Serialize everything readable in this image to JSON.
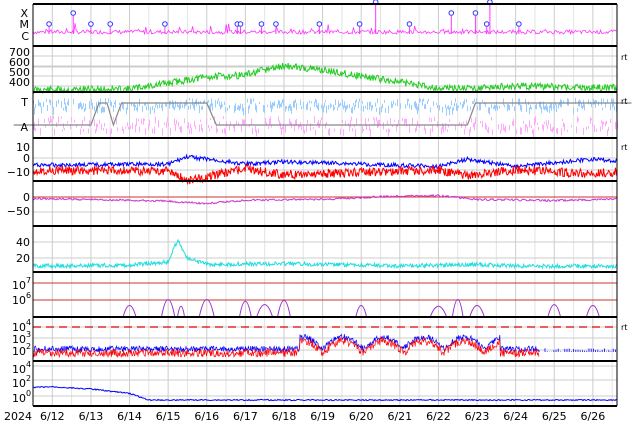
{
  "chart_data": [
    {
      "type": "scatter",
      "panel": "class",
      "y_categories": [
        "X",
        "M",
        "C"
      ],
      "series": [
        {
          "color": "#ff33ff",
          "style": "trace"
        },
        {
          "color": "#3333ff",
          "style": "circle-markers",
          "x": [
            "2024-06-11T22:00",
            "2024-06-12T13:00",
            "2024-06-13T00:00",
            "2024-06-13T12:00",
            "2024-06-14T22:00",
            "2024-06-16T19:00",
            "2024-06-16T21:00",
            "2024-06-17T10:00",
            "2024-06-17T19:00",
            "2024-06-18T22:00",
            "2024-06-19T23:00",
            "2024-06-20T09:00",
            "2024-06-21T06:00",
            "2024-06-22T08:00",
            "2024-06-22T23:00",
            "2024-06-23T06:00",
            "2024-06-23T08:00",
            "2024-06-24T02:00"
          ],
          "values": [
            "C",
            "M",
            "C",
            "C",
            "C",
            "C",
            "C",
            "C",
            "C",
            "C",
            "C",
            "X",
            "C",
            "M",
            "M",
            "C",
            "X",
            "C"
          ]
        }
      ]
    },
    {
      "type": "line",
      "panel": "wind-speed",
      "yticks": [
        400,
        500,
        600,
        700
      ],
      "ylim": [
        300,
        750
      ],
      "series": [
        {
          "color": "#22cc22",
          "x": [
            "2024-06-11T00:00",
            "2024-06-14T00:00",
            "2024-06-15T00:00",
            "2024-06-16T00:00",
            "2024-06-17T00:00",
            "2024-06-17T12:00",
            "2024-06-18T00:00",
            "2024-06-19T00:00",
            "2024-06-20T00:00",
            "2024-06-21T00:00",
            "2024-06-22T00:00",
            "2024-06-23T00:00",
            "2024-06-24T00:00",
            "2024-06-25T00:00",
            "2024-06-27T00:00"
          ],
          "values": [
            360,
            370,
            430,
            490,
            510,
            560,
            600,
            560,
            500,
            440,
            380,
            380,
            400,
            390,
            380
          ]
        }
      ]
    },
    {
      "type": "area",
      "panel": "sector",
      "y_categories": [
        "T",
        "A"
      ],
      "series": [
        {
          "color": "#99ccff",
          "level": "T"
        },
        {
          "color": "#ffaaff",
          "level": "A"
        },
        {
          "color": "#888888",
          "style": "step",
          "x": [
            "2024-06-11T00:00",
            "2024-06-13T00:00",
            "2024-06-13T05:00",
            "2024-06-13T10:00",
            "2024-06-13T14:00",
            "2024-06-13T19:00",
            "2024-06-16T00:00",
            "2024-06-16T06:00",
            "2024-06-22T18:00",
            "2024-06-22T23:00",
            "2024-06-27T00:00"
          ],
          "values": [
            "A",
            "A",
            "T",
            "T",
            "A",
            "T",
            "T",
            "A",
            "A",
            "T",
            "T"
          ]
        }
      ]
    },
    {
      "type": "line",
      "panel": "imf",
      "yticks": [
        -10,
        0,
        10
      ],
      "ylim": [
        -16,
        16
      ],
      "series": [
        {
          "color": "#0000ff",
          "x": [
            "2024-06-11T00:00",
            "2024-06-15T00:00",
            "2024-06-15T12:00",
            "2024-06-17T00:00",
            "2024-06-18T00:00",
            "2024-06-22T00:00",
            "2024-06-22T18:00",
            "2024-06-24T00:00",
            "2024-06-26T00:00",
            "2024-06-27T00:00"
          ],
          "values": [
            4,
            5,
            11,
            5,
            7,
            3,
            9,
            3,
            9,
            6
          ]
        },
        {
          "color": "#ff0000",
          "x": [
            "2024-06-11T00:00",
            "2024-06-15T00:00",
            "2024-06-15T12:00",
            "2024-06-17T00:00",
            "2024-06-18T00:00",
            "2024-06-22T00:00",
            "2024-06-22T18:00",
            "2024-06-24T00:00",
            "2024-06-26T00:00",
            "2024-06-27T00:00"
          ],
          "values": [
            0,
            -1,
            -9,
            1,
            -4,
            0,
            -5,
            0,
            -3,
            -1
          ]
        }
      ]
    },
    {
      "type": "line",
      "panel": "dst",
      "yticks": [
        -50,
        0
      ],
      "ylim": [
        -80,
        20
      ],
      "series": [
        {
          "color": "#cc33cc",
          "x": [
            "2024-06-11T00:00",
            "2024-06-13T00:00",
            "2024-06-15T00:00",
            "2024-06-16T00:00",
            "2024-06-17T00:00",
            "2024-06-19T00:00",
            "2024-06-21T00:00",
            "2024-06-22T00:00",
            "2024-06-23T00:00",
            "2024-06-25T00:00",
            "2024-06-27T00:00"
          ],
          "values": [
            -5,
            -8,
            -14,
            -22,
            -10,
            -8,
            4,
            5,
            -8,
            -12,
            -5
          ]
        }
      ]
    },
    {
      "type": "line",
      "panel": "density",
      "yticks": [
        20,
        40
      ],
      "ylim": [
        0,
        50
      ],
      "series": [
        {
          "color": "#22dddd",
          "x": [
            "2024-06-11T00:00",
            "2024-06-14T00:00",
            "2024-06-15T00:00",
            "2024-06-15T06:00",
            "2024-06-15T12:00",
            "2024-06-16T00:00",
            "2024-06-18T00:00",
            "2024-06-21T00:00",
            "2024-06-23T00:00",
            "2024-06-24T00:00",
            "2024-06-27T00:00"
          ],
          "values": [
            5,
            6,
            10,
            38,
            14,
            7,
            8,
            5,
            7,
            5,
            5
          ]
        }
      ]
    },
    {
      "type": "line",
      "panel": "electron-fluence",
      "yscale": "log",
      "yticks": [
        "10^6",
        "10^7"
      ],
      "series": [
        {
          "color": "#9933cc",
          "x": [
            "2024-06-14T00:00",
            "2024-06-15T00:00",
            "2024-06-15T08:00",
            "2024-06-16T00:00",
            "2024-06-17T00:00",
            "2024-06-17T12:00",
            "2024-06-18T00:00",
            "2024-06-20T00:00",
            "2024-06-22T00:00",
            "2024-06-22T12:00",
            "2024-06-23T00:00",
            "2024-06-25T00:00",
            "2024-06-26T00:00"
          ],
          "values": [
            "10^5.3",
            "10^6",
            "10^5.2",
            "10^6",
            "10^5.8",
            "10^5.4",
            "10^5.9",
            "10^5.3",
            "10^5.2",
            "10^6",
            "10^5.3",
            "10^5.4",
            "10^5.3"
          ]
        }
      ]
    },
    {
      "type": "line",
      "panel": "xray-flux",
      "yscale": "log",
      "yticks": [
        "10^2",
        "10^3",
        "10^4"
      ],
      "series": [
        {
          "color": "#dd0000",
          "style": "dashed-threshold",
          "value": "10^3.7"
        },
        {
          "color": "#0000ff"
        },
        {
          "color": "#ff0000"
        }
      ]
    },
    {
      "type": "line",
      "panel": "proton-flux",
      "yscale": "log",
      "yticks": [
        "10^0",
        "10^2",
        "10^4"
      ],
      "series": [
        {
          "color": "#0000ff",
          "x": [
            "2024-06-11T00:00",
            "2024-06-12T00:00",
            "2024-06-13T00:00",
            "2024-06-14T00:00",
            "2024-06-14T12:00",
            "2024-06-16T00:00",
            "2024-06-24T06:00",
            "2024-06-27T00:00"
          ],
          "values": [
            "10^1.1",
            "10^1.2",
            "10^1",
            "10^0.6",
            "10^0",
            "10^0",
            "10^0",
            "10^0"
          ]
        }
      ]
    }
  ],
  "panels": {
    "class": {
      "labels": [
        "X",
        "M",
        "C"
      ]
    },
    "wind": {
      "labels": [
        "400",
        "500",
        "600",
        "700"
      ]
    },
    "sector": {
      "labels": [
        "T",
        "A"
      ]
    },
    "imf": {
      "labels": [
        "10",
        "0",
        "−10"
      ]
    },
    "dst": {
      "labels": [
        "0",
        "−50"
      ]
    },
    "density": {
      "labels": [
        "40",
        "20"
      ]
    },
    "fluence": {
      "labels": [
        "10",
        "10"
      ],
      "exponents": [
        "7",
        "6"
      ]
    },
    "xray": {
      "labels": [
        "10",
        "10",
        "10"
      ],
      "exponents": [
        "4",
        "3",
        "2"
      ]
    },
    "proton": {
      "labels": [
        "10",
        "10",
        "10"
      ],
      "exponents": [
        "4",
        "2",
        "0"
      ]
    }
  },
  "right_markers": [
    "rt",
    "rt",
    "rt",
    "rt"
  ],
  "x_axis": {
    "year": "2024",
    "ticks": [
      "6/12",
      "6/13",
      "6/14",
      "6/15",
      "6/16",
      "6/17",
      "6/18",
      "6/19",
      "6/20",
      "6/21",
      "6/22",
      "6/23",
      "6/24",
      "6/25",
      "6/26"
    ]
  },
  "colors": {
    "frame": "#000000",
    "grid": "#cccccc",
    "flare": "#ff33ff",
    "flare_marker": "#3333ff",
    "wind": "#22cc22",
    "sector_toward": "#99ccff",
    "sector_away": "#ffaaff",
    "bt": "#0000ff",
    "bz": "#ff0000",
    "dst": "#cc33cc",
    "density": "#22dddd",
    "fluence": "#9933cc",
    "xray_threshold": "#dd0000",
    "proton": "#0000ff"
  }
}
